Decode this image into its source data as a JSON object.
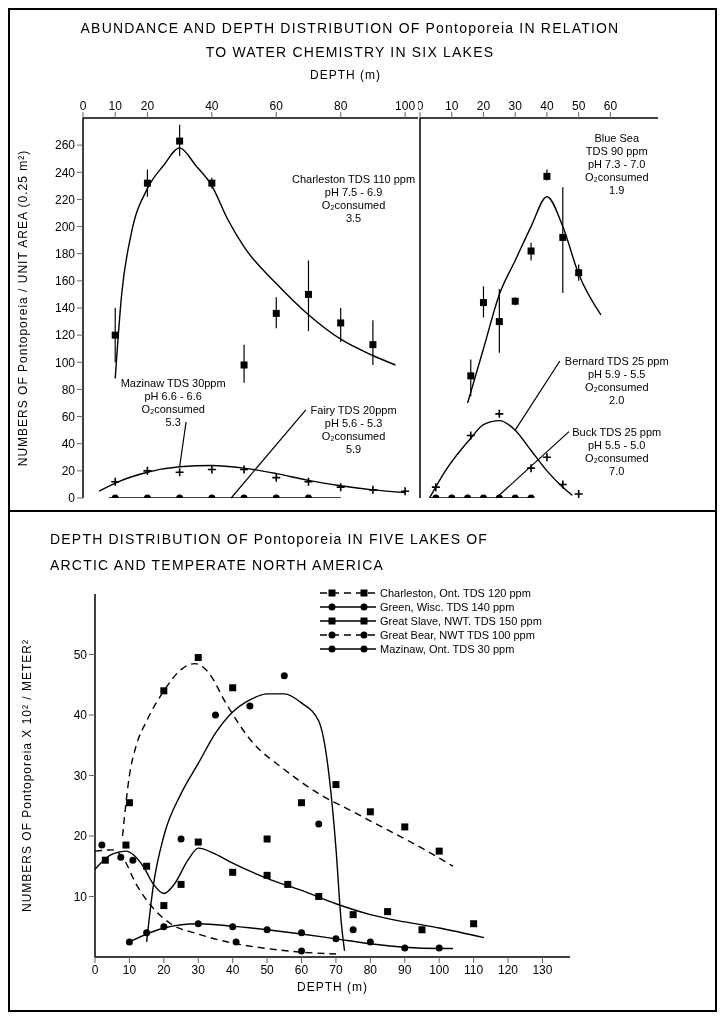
{
  "chart_data": [
    {
      "type": "scatter",
      "title": "ABUNDANCE AND DEPTH DISTRIBUTION OF Pontoporeia IN RELATION TO WATER CHEMISTRY IN SIX LAKES",
      "xlabel": "DEPTH (m)",
      "ylabel": "NUMBERS OF Pontoporeia / UNIT AREA (0.25 m²)",
      "xlim": [
        0,
        104
      ],
      "xticks": [
        0,
        10,
        20,
        40,
        60,
        80,
        100
      ],
      "ylim": [
        0,
        280
      ],
      "yticks": [
        0,
        20,
        40,
        60,
        80,
        100,
        120,
        140,
        160,
        180,
        200,
        220,
        240,
        260
      ],
      "annotations": [
        "Charleston TDS 110 ppm\npH 7.5 - 6.9\nO₂consumed\n3.5",
        {
          "text": "Mazinaw TDS 30ppm\npH 6.6 - 6.6\nO₂consumed\n5.3",
          "x": 30,
          "y": 23
        },
        {
          "text": "Fairy TDS 20ppm\npH 5.6 - 5.3\nO₂consumed\n5.9",
          "x": 46,
          "y": 0
        }
      ],
      "series": [
        {
          "type": "scatter",
          "color": "#000000",
          "marker": "square",
          "x": [
            10,
            20,
            30,
            40,
            50,
            60,
            70,
            80,
            90
          ],
          "values": [
            120,
            232,
            263,
            232,
            98,
            136,
            150,
            129,
            113
          ],
          "errors": [
            [
              100,
              140
            ],
            [
              222,
              242
            ],
            [
              252,
              275
            ],
            [
              228,
              236
            ],
            [
              85,
              113
            ],
            [
              125,
              148
            ],
            [
              123,
              175
            ],
            [
              115,
              140
            ],
            [
              98,
              131
            ]
          ]
        },
        {
          "type": "line",
          "color": "#000000",
          "x": [
            10,
            12,
            15,
            20,
            25,
            30,
            35,
            40,
            45,
            50,
            60,
            70,
            80,
            90,
            97
          ],
          "values": [
            88,
            150,
            195,
            228,
            245,
            258,
            245,
            230,
            205,
            185,
            158,
            135,
            117,
            105,
            98
          ]
        },
        {
          "type": "scatter",
          "color": "#000000",
          "marker": "cross",
          "x": [
            10,
            20,
            30,
            40,
            50,
            60,
            70,
            80,
            90,
            100
          ],
          "values": [
            12,
            20,
            19,
            21,
            21,
            15,
            12,
            8,
            6,
            5
          ]
        },
        {
          "type": "line",
          "color": "#000000",
          "x": [
            5,
            10,
            20,
            30,
            40,
            50,
            60,
            70,
            80,
            90,
            100
          ],
          "values": [
            5,
            11,
            19,
            23,
            24,
            22,
            18,
            13,
            9,
            6,
            4
          ]
        },
        {
          "type": "scatter",
          "color": "#000000",
          "marker": "circle",
          "x": [
            10,
            20,
            30,
            40,
            50,
            60,
            70
          ],
          "values": [
            0,
            0,
            0,
            0,
            0,
            0,
            0
          ]
        },
        {
          "type": "line",
          "color": "#000000",
          "x": [
            8,
            80
          ],
          "values": [
            0,
            0
          ]
        }
      ]
    },
    {
      "type": "scatter",
      "tick_labels": "x",
      "xlim": [
        0,
        75
      ],
      "xticks": [
        0,
        10,
        20,
        30,
        40,
        50,
        60
      ],
      "ylim": [
        0,
        280
      ],
      "annotations": [
        "Blue Sea\nTDS 90 ppm\npH 7.3 - 7.0\nO₂consumed\n1.9",
        {
          "text": "Bernard TDS 25 ppm\npH 5.9 - 5.5\nO₂consumed\n2.0",
          "x": 30,
          "y": 50
        },
        {
          "text": "Buck TDS 25 ppm\npH 5.5 - 5.0\nO₂consumed\n7.0",
          "x": 24,
          "y": 0
        }
      ],
      "series": [
        {
          "type": "scatter",
          "color": "#000000",
          "marker": "square",
          "x": [
            16,
            20,
            25,
            30,
            35,
            40,
            45,
            50
          ],
          "values": [
            90,
            144,
            130,
            145,
            182,
            237,
            192,
            166
          ],
          "errors": [
            [
              75,
              102
            ],
            [
              133,
              156
            ],
            [
              107,
              154
            ],
            [
              142,
              148
            ],
            [
              175,
              188
            ],
            [
              234,
              242
            ],
            [
              151,
              229
            ],
            [
              160,
              172
            ]
          ]
        },
        {
          "type": "line",
          "color": "#000000",
          "x": [
            15,
            20,
            25,
            30,
            35,
            40,
            45,
            50,
            57
          ],
          "values": [
            70,
            110,
            150,
            175,
            200,
            222,
            200,
            165,
            135
          ]
        },
        {
          "type": "scatter",
          "color": "#000000",
          "marker": "cross",
          "x": [
            5,
            16,
            25,
            35,
            40,
            45,
            50
          ],
          "values": [
            8,
            46,
            62,
            22,
            30,
            10,
            3
          ]
        },
        {
          "type": "line",
          "color": "#000000",
          "x": [
            3,
            8,
            16,
            20,
            25,
            30,
            35,
            40,
            45,
            48
          ],
          "values": [
            0,
            20,
            44,
            54,
            57,
            50,
            35,
            20,
            8,
            2
          ]
        },
        {
          "type": "scatter",
          "color": "#000000",
          "marker": "circle",
          "x": [
            5,
            10,
            15,
            20,
            25,
            30,
            35
          ],
          "values": [
            0,
            0,
            0,
            0,
            0,
            0,
            0
          ]
        },
        {
          "type": "line",
          "color": "#000000",
          "x": [
            3,
            35
          ],
          "values": [
            0,
            0
          ]
        }
      ]
    },
    {
      "type": "scatter",
      "title": "DEPTH DISTRIBUTION OF Pontoporeia IN FIVE LAKES OF ARCTIC AND TEMPERATE NORTH AMERICA",
      "xlabel": "DEPTH (m)",
      "ylabel": "NUMBERS OF Pontoporeia X 10² / METER²",
      "xlim": [
        0,
        138
      ],
      "xticks": [
        0,
        10,
        20,
        30,
        40,
        50,
        60,
        70,
        80,
        90,
        100,
        110,
        120,
        130
      ],
      "ylim": [
        0,
        60
      ],
      "yticks": [
        10,
        20,
        30,
        40,
        50
      ],
      "legend": "top right",
      "series": [
        {
          "type": "scatter",
          "name": "Charleston, Ont. TDS 120 ppm",
          "color": "#000000",
          "marker": "square",
          "x": [
            10,
            20,
            30,
            40,
            50,
            60,
            70,
            80,
            90,
            100
          ],
          "values": [
            25.5,
            44,
            49.5,
            44.5,
            19.5,
            25.5,
            28.5,
            24,
            21.5,
            17.5
          ]
        },
        {
          "type": "line",
          "color": "#000000",
          "line_style": "dashed",
          "x": [
            8,
            10,
            12,
            15,
            20,
            25,
            29,
            33,
            38,
            45,
            55,
            65,
            75,
            85,
            95,
            104
          ],
          "values": [
            20,
            30,
            35,
            39,
            44,
            47.5,
            48.5,
            47,
            42,
            36,
            31,
            27,
            24,
            21,
            18,
            15
          ]
        },
        {
          "type": "scatter",
          "name": "Green, Wisc. TDS 140 ppm",
          "color": "#000000",
          "marker": "circle",
          "x": [
            25,
            35,
            45,
            55,
            65,
            75
          ],
          "values": [
            19.5,
            40,
            41.5,
            46.5,
            22,
            4.5
          ]
        },
        {
          "type": "line",
          "color": "#000000",
          "line_style": "solid",
          "x": [
            15,
            17,
            20,
            25,
            30,
            35,
            40,
            45,
            50,
            55,
            60,
            65,
            68,
            70,
            71.5,
            72.5
          ],
          "values": [
            2.5,
            12,
            20,
            27,
            32,
            37,
            40.5,
            42.5,
            43.5,
            43.5,
            42,
            39,
            30,
            18,
            6,
            1
          ]
        },
        {
          "type": "scatter",
          "name": "Great Slave, NWT. TDS 150 ppm",
          "color": "#000000",
          "marker": "square",
          "x": [
            3,
            9,
            15,
            20,
            25,
            30,
            40,
            50,
            56,
            65,
            75,
            85,
            95,
            110
          ],
          "values": [
            16,
            18.5,
            15,
            8.5,
            12,
            19,
            14,
            13.5,
            12,
            10,
            7,
            7.5,
            4.5,
            5.5
          ]
        },
        {
          "type": "line",
          "color": "#000000",
          "line_style": "solid",
          "x": [
            0,
            5,
            9,
            14,
            17,
            20,
            23,
            27,
            30,
            35,
            40,
            50,
            60,
            70,
            80,
            90,
            100,
            113
          ],
          "values": [
            14.5,
            17,
            17.5,
            15,
            12,
            10.5,
            12,
            16,
            18,
            17,
            15.5,
            13,
            11,
            8.8,
            7,
            5.8,
            4.8,
            3.2
          ]
        },
        {
          "type": "scatter",
          "name": "Great Bear, NWT TDS 100 ppm",
          "color": "#000000",
          "marker": "circle",
          "x": [
            2,
            7.5,
            11,
            41,
            60
          ],
          "values": [
            18.5,
            16.5,
            16,
            2.5,
            1
          ]
        },
        {
          "type": "line",
          "color": "#000000",
          "line_style": "dashed",
          "x": [
            0,
            5,
            8,
            12,
            17,
            22,
            30,
            40,
            50,
            60,
            70
          ],
          "values": [
            17.5,
            17.7,
            16.5,
            12,
            8,
            5.5,
            3.8,
            2.3,
            1.4,
            0.8,
            0.5
          ]
        },
        {
          "type": "scatter",
          "name": "Mazinaw, Ont. TDS 30 ppm",
          "color": "#000000",
          "marker": "circle",
          "x": [
            10,
            15,
            20,
            30,
            40,
            50,
            60,
            70,
            80,
            90,
            100
          ],
          "values": [
            2.5,
            4,
            5,
            5.5,
            5,
            4.5,
            4,
            3,
            2.5,
            1.5,
            1.5
          ]
        },
        {
          "type": "line",
          "color": "#000000",
          "line_style": "solid",
          "x": [
            10,
            20,
            30,
            40,
            50,
            60,
            70,
            80,
            90,
            100,
            104
          ],
          "values": [
            2.5,
            4.8,
            5.5,
            5.1,
            4.5,
            3.8,
            3,
            2.2,
            1.6,
            1.4,
            1.4
          ]
        }
      ]
    }
  ]
}
